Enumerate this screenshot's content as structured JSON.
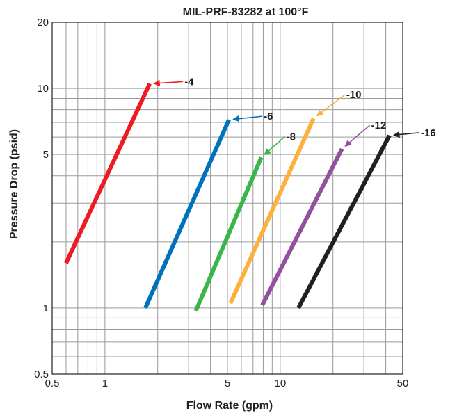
{
  "chart_data": {
    "type": "line",
    "title": "MIL-PRF-83282 at 100°F",
    "xlabel": "Flow Rate (gpm)",
    "ylabel": "Pressure Drop (psid)",
    "x_scale": "log",
    "y_scale": "log",
    "xlim": [
      0.5,
      50
    ],
    "ylim": [
      0.5,
      20
    ],
    "x_ticks": [
      {
        "value": 0.5,
        "label": "0.5"
      },
      {
        "value": 1,
        "label": "1"
      },
      {
        "value": 5,
        "label": "5"
      },
      {
        "value": 10,
        "label": "10"
      },
      {
        "value": 50,
        "label": "50"
      }
    ],
    "y_ticks": [
      {
        "value": 0.5,
        "label": "0.5"
      },
      {
        "value": 1,
        "label": "1"
      },
      {
        "value": 5,
        "label": "5"
      },
      {
        "value": 10,
        "label": "10"
      },
      {
        "value": 20,
        "label": "20"
      }
    ],
    "grid": true,
    "x_grid_values": [
      0.6,
      0.7,
      0.8,
      0.9,
      1,
      2,
      3,
      4,
      5,
      6,
      7,
      8,
      9,
      10,
      20,
      30,
      40
    ],
    "y_grid_values": [
      0.6,
      0.7,
      0.8,
      0.9,
      1,
      2,
      3,
      4,
      5,
      6,
      7,
      8,
      9,
      10
    ],
    "series": [
      {
        "name": "-4",
        "color": "#ed1c24",
        "x": [
          0.6,
          1.8
        ],
        "y": [
          1.6,
          10.5
        ]
      },
      {
        "name": "-6",
        "color": "#0072bc",
        "x": [
          1.7,
          5.1
        ],
        "y": [
          1.0,
          7.2
        ]
      },
      {
        "name": "-8",
        "color": "#39b54a",
        "x": [
          3.3,
          7.8
        ],
        "y": [
          0.97,
          4.85
        ]
      },
      {
        "name": "-10",
        "color": "#fbb040",
        "x": [
          5.2,
          15.5
        ],
        "y": [
          1.05,
          7.3
        ]
      },
      {
        "name": "-12",
        "color": "#92509f",
        "x": [
          7.9,
          22.5
        ],
        "y": [
          1.03,
          5.3
        ]
      },
      {
        "name": "-16",
        "color": "#231f20",
        "x": [
          12.7,
          42.0
        ],
        "y": [
          1.0,
          6.1
        ]
      }
    ]
  }
}
